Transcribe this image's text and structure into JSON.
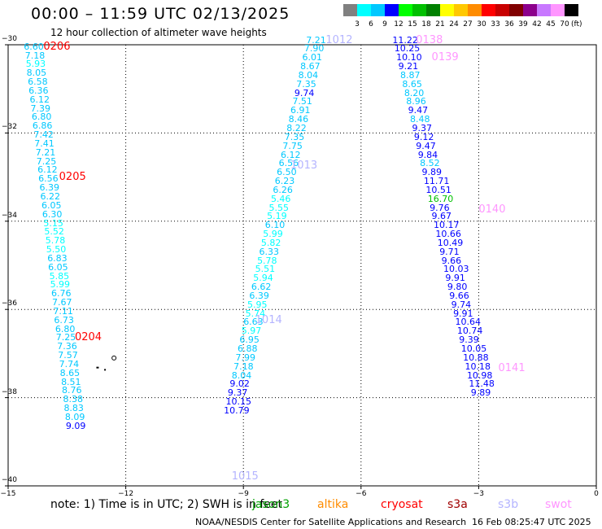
{
  "title": "00:00 – 11:59 UTC 02/13/2025",
  "subtitle": "12 hour collection of altimeter wave heights",
  "note": "note:  1) Time is in UTC; 2) SWH is in feet",
  "credit": "NOAA/NESDIS Center for Satellite Applications and Research",
  "timestamp": "16 Feb 08:25:47 UTC 2025",
  "color_legend": {
    "unit": "(ft)",
    "colors": [
      "#808080",
      "#00ffff",
      "#00c8ff",
      "#0000ff",
      "#00ff00",
      "#00c000",
      "#008000",
      "#ffff00",
      "#ffc800",
      "#ff8c00",
      "#ff0000",
      "#c80000",
      "#800000",
      "#8c008c",
      "#c878ff",
      "#ff96ff",
      "#000000"
    ],
    "ticks": [
      "3",
      "6",
      "9",
      "12",
      "15",
      "18",
      "21",
      "24",
      "27",
      "30",
      "33",
      "36",
      "39",
      "42",
      "45",
      "70"
    ]
  },
  "satellites": [
    {
      "name": "jason3",
      "color": "#00a000"
    },
    {
      "name": "altika",
      "color": "#ff8c00"
    },
    {
      "name": "cryosat",
      "color": "#ff0000"
    },
    {
      "name": "s3a",
      "color": "#a00000"
    },
    {
      "name": "s3b",
      "color": "#b4b4ff"
    },
    {
      "name": "swot",
      "color": "#ff96ff"
    }
  ],
  "map": {
    "lon_range": [
      -15,
      0
    ],
    "lat_range": [
      -40,
      -30
    ],
    "lon_ticks": [
      "−15",
      "−12",
      "−9",
      "−6",
      "−3",
      "0"
    ],
    "lat_ticks": [
      "−30",
      "−32",
      "−34",
      "−36",
      "−38",
      "−40"
    ]
  },
  "tracks": [
    {
      "satellite": "cryosat",
      "passes": [
        {
          "label": "0206",
          "lon": -14.1,
          "lat": -30.05
        },
        {
          "label": "0205",
          "lon": -13.7,
          "lat": -33.0
        },
        {
          "label": "0204",
          "lon": -13.3,
          "lat": -36.65
        }
      ],
      "points": [
        {
          "v": "6.60",
          "lon": -14.6,
          "lat": -30.05,
          "c": "#00c8ff"
        },
        {
          "v": "7.18",
          "lon": -14.57,
          "lat": -30.25,
          "c": "#00c8ff"
        },
        {
          "v": "5.93",
          "lon": -14.55,
          "lat": -30.45,
          "c": "#00ffff"
        },
        {
          "v": "8.05",
          "lon": -14.53,
          "lat": -30.65,
          "c": "#00c8ff"
        },
        {
          "v": "6.58",
          "lon": -14.5,
          "lat": -30.85,
          "c": "#00c8ff"
        },
        {
          "v": "6.36",
          "lon": -14.48,
          "lat": -31.05,
          "c": "#00c8ff"
        },
        {
          "v": "6.12",
          "lon": -14.45,
          "lat": -31.25,
          "c": "#00c8ff"
        },
        {
          "v": "7.39",
          "lon": -14.43,
          "lat": -31.45,
          "c": "#00c8ff"
        },
        {
          "v": "6.80",
          "lon": -14.4,
          "lat": -31.65,
          "c": "#00c8ff"
        },
        {
          "v": "6.86",
          "lon": -14.38,
          "lat": -31.85,
          "c": "#00c8ff"
        },
        {
          "v": "7.42",
          "lon": -14.35,
          "lat": -32.05,
          "c": "#00c8ff"
        },
        {
          "v": "7.41",
          "lon": -14.33,
          "lat": -32.25,
          "c": "#00c8ff"
        },
        {
          "v": "7.21",
          "lon": -14.3,
          "lat": -32.45,
          "c": "#00c8ff"
        },
        {
          "v": "7.25",
          "lon": -14.28,
          "lat": -32.65,
          "c": "#00c8ff"
        },
        {
          "v": "6.12",
          "lon": -14.25,
          "lat": -32.85,
          "c": "#00c8ff"
        },
        {
          "v": "6.56",
          "lon": -14.23,
          "lat": -33.05,
          "c": "#00c8ff"
        },
        {
          "v": "6.39",
          "lon": -14.2,
          "lat": -33.25,
          "c": "#00c8ff"
        },
        {
          "v": "6.22",
          "lon": -14.18,
          "lat": -33.45,
          "c": "#00c8ff"
        },
        {
          "v": "6.05",
          "lon": -14.15,
          "lat": -33.65,
          "c": "#00c8ff"
        },
        {
          "v": "6.30",
          "lon": -14.13,
          "lat": -33.85,
          "c": "#00c8ff"
        },
        {
          "v": "5.15",
          "lon": -14.1,
          "lat": -34.05,
          "c": "#00ffff"
        },
        {
          "v": "5.52",
          "lon": -14.08,
          "lat": -34.25,
          "c": "#00ffff"
        },
        {
          "v": "5.78",
          "lon": -14.05,
          "lat": -34.45,
          "c": "#00ffff"
        },
        {
          "v": "5.50",
          "lon": -14.03,
          "lat": -34.65,
          "c": "#00ffff"
        },
        {
          "v": "6.83",
          "lon": -14.0,
          "lat": -34.85,
          "c": "#00c8ff"
        },
        {
          "v": "6.05",
          "lon": -13.98,
          "lat": -35.05,
          "c": "#00c8ff"
        },
        {
          "v": "5.85",
          "lon": -13.95,
          "lat": -35.25,
          "c": "#00ffff"
        },
        {
          "v": "5.99",
          "lon": -13.93,
          "lat": -35.45,
          "c": "#00ffff"
        },
        {
          "v": "6.76",
          "lon": -13.9,
          "lat": -35.65,
          "c": "#00c8ff"
        },
        {
          "v": "7.67",
          "lon": -13.88,
          "lat": -35.85,
          "c": "#00c8ff"
        },
        {
          "v": "7.11",
          "lon": -13.85,
          "lat": -36.05,
          "c": "#00c8ff"
        },
        {
          "v": "6.73",
          "lon": -13.83,
          "lat": -36.25,
          "c": "#00c8ff"
        },
        {
          "v": "6.80",
          "lon": -13.8,
          "lat": -36.45,
          "c": "#00c8ff"
        },
        {
          "v": "7.25",
          "lon": -13.78,
          "lat": -36.65,
          "c": "#00c8ff"
        },
        {
          "v": "7.36",
          "lon": -13.75,
          "lat": -36.85,
          "c": "#00c8ff"
        },
        {
          "v": "7.57",
          "lon": -13.73,
          "lat": -37.05,
          "c": "#00c8ff"
        },
        {
          "v": "7.74",
          "lon": -13.7,
          "lat": -37.25,
          "c": "#00c8ff"
        },
        {
          "v": "8.65",
          "lon": -13.68,
          "lat": -37.45,
          "c": "#00c8ff"
        },
        {
          "v": "8.51",
          "lon": -13.65,
          "lat": -37.65,
          "c": "#00c8ff"
        },
        {
          "v": "8.76",
          "lon": -13.63,
          "lat": -37.85,
          "c": "#00c8ff"
        },
        {
          "v": "8.38",
          "lon": -13.6,
          "lat": -38.05,
          "c": "#00c8ff"
        },
        {
          "v": "8.83",
          "lon": -13.58,
          "lat": -38.25,
          "c": "#00c8ff"
        },
        {
          "v": "8.09",
          "lon": -13.55,
          "lat": -38.45,
          "c": "#00c8ff"
        },
        {
          "v": "9.09",
          "lon": -13.53,
          "lat": -38.65,
          "c": "#0000ff"
        }
      ]
    },
    {
      "satellite": "s3b",
      "passes": [
        {
          "label": "1012",
          "lon": -6.9,
          "lat": -29.9
        },
        {
          "label": "1013",
          "lon": -7.8,
          "lat": -32.75
        },
        {
          "label": "1014",
          "lon": -8.7,
          "lat": -36.25
        },
        {
          "label": "1015",
          "lon": -9.3,
          "lat": -39.8
        }
      ],
      "points": [
        {
          "v": "7.21",
          "lon": -7.4,
          "lat": -29.9,
          "c": "#00c8ff"
        },
        {
          "v": "7.90",
          "lon": -7.45,
          "lat": -30.1,
          "c": "#00c8ff"
        },
        {
          "v": "6.01",
          "lon": -7.5,
          "lat": -30.3,
          "c": "#00c8ff"
        },
        {
          "v": "8.67",
          "lon": -7.55,
          "lat": -30.5,
          "c": "#00c8ff"
        },
        {
          "v": "8.04",
          "lon": -7.6,
          "lat": -30.7,
          "c": "#00c8ff"
        },
        {
          "v": "7.35",
          "lon": -7.65,
          "lat": -30.9,
          "c": "#00c8ff"
        },
        {
          "v": "9.74",
          "lon": -7.7,
          "lat": -31.1,
          "c": "#0000ff"
        },
        {
          "v": "7.51",
          "lon": -7.75,
          "lat": -31.3,
          "c": "#00c8ff"
        },
        {
          "v": "6.91",
          "lon": -7.8,
          "lat": -31.5,
          "c": "#00c8ff"
        },
        {
          "v": "8.46",
          "lon": -7.85,
          "lat": -31.7,
          "c": "#00c8ff"
        },
        {
          "v": "8.22",
          "lon": -7.9,
          "lat": -31.9,
          "c": "#00c8ff"
        },
        {
          "v": "7.35",
          "lon": -7.95,
          "lat": -32.1,
          "c": "#00c8ff"
        },
        {
          "v": "7.75",
          "lon": -8.0,
          "lat": -32.3,
          "c": "#00c8ff"
        },
        {
          "v": "6.12",
          "lon": -8.05,
          "lat": -32.5,
          "c": "#00c8ff"
        },
        {
          "v": "6.56",
          "lon": -8.1,
          "lat": -32.7,
          "c": "#00c8ff"
        },
        {
          "v": "6.50",
          "lon": -8.15,
          "lat": -32.9,
          "c": "#00c8ff"
        },
        {
          "v": "6.23",
          "lon": -8.2,
          "lat": -33.1,
          "c": "#00c8ff"
        },
        {
          "v": "6.26",
          "lon": -8.25,
          "lat": -33.3,
          "c": "#00c8ff"
        },
        {
          "v": "5.46",
          "lon": -8.3,
          "lat": -33.5,
          "c": "#00ffff"
        },
        {
          "v": "5.55",
          "lon": -8.35,
          "lat": -33.7,
          "c": "#00ffff"
        },
        {
          "v": "5.19",
          "lon": -8.4,
          "lat": -33.9,
          "c": "#00ffff"
        },
        {
          "v": "6.10",
          "lon": -8.45,
          "lat": -34.1,
          "c": "#00c8ff"
        },
        {
          "v": "5.99",
          "lon": -8.5,
          "lat": -34.3,
          "c": "#00ffff"
        },
        {
          "v": "5.82",
          "lon": -8.55,
          "lat": -34.5,
          "c": "#00ffff"
        },
        {
          "v": "6.33",
          "lon": -8.6,
          "lat": -34.7,
          "c": "#00c8ff"
        },
        {
          "v": "5.78",
          "lon": -8.65,
          "lat": -34.9,
          "c": "#00ffff"
        },
        {
          "v": "5.51",
          "lon": -8.7,
          "lat": -35.1,
          "c": "#00ffff"
        },
        {
          "v": "5.94",
          "lon": -8.75,
          "lat": -35.3,
          "c": "#00ffff"
        },
        {
          "v": "6.62",
          "lon": -8.8,
          "lat": -35.5,
          "c": "#00c8ff"
        },
        {
          "v": "6.39",
          "lon": -8.85,
          "lat": -35.7,
          "c": "#00c8ff"
        },
        {
          "v": "5.95",
          "lon": -8.9,
          "lat": -35.9,
          "c": "#00ffff"
        },
        {
          "v": "5.74",
          "lon": -8.95,
          "lat": -36.1,
          "c": "#00ffff"
        },
        {
          "v": "6.63",
          "lon": -9.0,
          "lat": -36.3,
          "c": "#00c8ff"
        },
        {
          "v": "5.97",
          "lon": -9.05,
          "lat": -36.5,
          "c": "#00ffff"
        },
        {
          "v": "6.95",
          "lon": -9.1,
          "lat": -36.7,
          "c": "#00c8ff"
        },
        {
          "v": "6.88",
          "lon": -9.15,
          "lat": -36.9,
          "c": "#00c8ff"
        },
        {
          "v": "7.99",
          "lon": -9.2,
          "lat": -37.1,
          "c": "#00c8ff"
        },
        {
          "v": "7.18",
          "lon": -9.25,
          "lat": -37.3,
          "c": "#00c8ff"
        },
        {
          "v": "8.04",
          "lon": -9.3,
          "lat": -37.5,
          "c": "#00c8ff"
        },
        {
          "v": "9.02",
          "lon": -9.35,
          "lat": -37.7,
          "c": "#0000ff"
        },
        {
          "v": "9.37",
          "lon": -9.4,
          "lat": -37.9,
          "c": "#0000ff"
        },
        {
          "v": "10.15",
          "lon": -9.45,
          "lat": -38.1,
          "c": "#0000ff"
        },
        {
          "v": "10.79",
          "lon": -9.5,
          "lat": -38.3,
          "c": "#0000ff"
        }
      ]
    },
    {
      "satellite": "swot",
      "passes": [
        {
          "label": "0138",
          "lon": -4.6,
          "lat": -29.9
        },
        {
          "label": "0139",
          "lon": -4.2,
          "lat": -30.3
        },
        {
          "label": "0140",
          "lon": -3.0,
          "lat": -33.75
        },
        {
          "label": "0141",
          "lon": -2.5,
          "lat": -37.35
        }
      ],
      "points": [
        {
          "v": "11.22",
          "lon": -5.2,
          "lat": -29.9,
          "c": "#0000ff"
        },
        {
          "v": "10.25",
          "lon": -5.15,
          "lat": -30.1,
          "c": "#0000ff"
        },
        {
          "v": "10.10",
          "lon": -5.1,
          "lat": -30.3,
          "c": "#0000ff"
        },
        {
          "v": "9.21",
          "lon": -5.05,
          "lat": -30.5,
          "c": "#0000ff"
        },
        {
          "v": "8.87",
          "lon": -5.0,
          "lat": -30.7,
          "c": "#00c8ff"
        },
        {
          "v": "8.65",
          "lon": -4.95,
          "lat": -30.9,
          "c": "#00c8ff"
        },
        {
          "v": "8.20",
          "lon": -4.9,
          "lat": -31.1,
          "c": "#00c8ff"
        },
        {
          "v": "8.96",
          "lon": -4.85,
          "lat": -31.3,
          "c": "#00c8ff"
        },
        {
          "v": "9.47",
          "lon": -4.8,
          "lat": -31.5,
          "c": "#0000ff"
        },
        {
          "v": "8.48",
          "lon": -4.75,
          "lat": -31.7,
          "c": "#00c8ff"
        },
        {
          "v": "9.37",
          "lon": -4.7,
          "lat": -31.9,
          "c": "#0000ff"
        },
        {
          "v": "9.12",
          "lon": -4.65,
          "lat": -32.1,
          "c": "#0000ff"
        },
        {
          "v": "9.47",
          "lon": -4.6,
          "lat": -32.3,
          "c": "#0000ff"
        },
        {
          "v": "9.84",
          "lon": -4.55,
          "lat": -32.5,
          "c": "#0000ff"
        },
        {
          "v": "8.52",
          "lon": -4.5,
          "lat": -32.7,
          "c": "#00c8ff"
        },
        {
          "v": "9.89",
          "lon": -4.45,
          "lat": -32.9,
          "c": "#0000ff"
        },
        {
          "v": "11.71",
          "lon": -4.4,
          "lat": -33.1,
          "c": "#0000ff"
        },
        {
          "v": "10.51",
          "lon": -4.35,
          "lat": -33.3,
          "c": "#0000ff"
        },
        {
          "v": "16.70",
          "lon": -4.3,
          "lat": -33.5,
          "c": "#00c000"
        },
        {
          "v": "9.76",
          "lon": -4.25,
          "lat": -33.7,
          "c": "#0000ff"
        },
        {
          "v": "9.67",
          "lon": -4.2,
          "lat": -33.9,
          "c": "#0000ff"
        },
        {
          "v": "10.17",
          "lon": -4.15,
          "lat": -34.1,
          "c": "#0000ff"
        },
        {
          "v": "10.66",
          "lon": -4.1,
          "lat": -34.3,
          "c": "#0000ff"
        },
        {
          "v": "10.49",
          "lon": -4.05,
          "lat": -34.5,
          "c": "#0000ff"
        },
        {
          "v": "9.71",
          "lon": -4.0,
          "lat": -34.7,
          "c": "#0000ff"
        },
        {
          "v": "9.66",
          "lon": -3.95,
          "lat": -34.9,
          "c": "#0000ff"
        },
        {
          "v": "10.03",
          "lon": -3.9,
          "lat": -35.1,
          "c": "#0000ff"
        },
        {
          "v": "9.91",
          "lon": -3.85,
          "lat": -35.3,
          "c": "#0000ff"
        },
        {
          "v": "9.80",
          "lon": -3.8,
          "lat": -35.5,
          "c": "#0000ff"
        },
        {
          "v": "9.66",
          "lon": -3.75,
          "lat": -35.7,
          "c": "#0000ff"
        },
        {
          "v": "9.74",
          "lon": -3.7,
          "lat": -35.9,
          "c": "#0000ff"
        },
        {
          "v": "9.91",
          "lon": -3.65,
          "lat": -36.1,
          "c": "#0000ff"
        },
        {
          "v": "10.64",
          "lon": -3.6,
          "lat": -36.3,
          "c": "#0000ff"
        },
        {
          "v": "10.74",
          "lon": -3.55,
          "lat": -36.5,
          "c": "#0000ff"
        },
        {
          "v": "9.39",
          "lon": -3.5,
          "lat": -36.7,
          "c": "#0000ff"
        },
        {
          "v": "10.05",
          "lon": -3.45,
          "lat": -36.9,
          "c": "#0000ff"
        },
        {
          "v": "10.88",
          "lon": -3.4,
          "lat": -37.1,
          "c": "#0000ff"
        },
        {
          "v": "10.18",
          "lon": -3.35,
          "lat": -37.3,
          "c": "#0000ff"
        },
        {
          "v": "10.98",
          "lon": -3.3,
          "lat": -37.5,
          "c": "#0000ff"
        },
        {
          "v": "11.48",
          "lon": -3.25,
          "lat": -37.7,
          "c": "#0000ff"
        },
        {
          "v": "9.89",
          "lon": -3.2,
          "lat": -37.9,
          "c": "#0000ff"
        }
      ]
    }
  ]
}
